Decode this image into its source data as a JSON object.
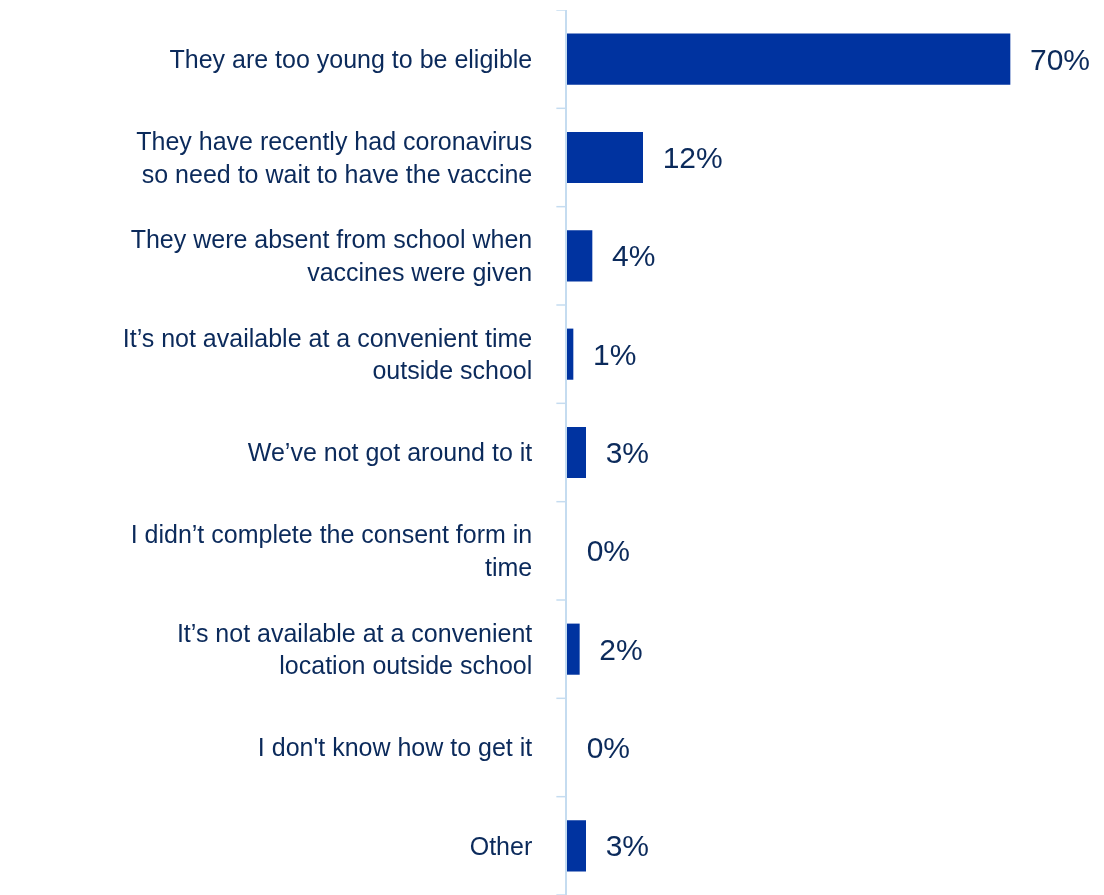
{
  "chart_data": {
    "type": "bar",
    "orientation": "horizontal",
    "categories": [
      "They are too young to be eligible",
      "They have recently had coronavirus\nso need to wait to have the vaccine",
      "They were absent from school when\nvaccines were given",
      "It’s not available at a convenient time\noutside school",
      "We’ve not got around to it",
      "I didn’t complete the consent form in\ntime",
      "It’s not available at a convenient\nlocation outside school",
      "I don't know how to get it",
      "Other"
    ],
    "values": [
      70,
      12,
      4,
      1,
      3,
      0,
      2,
      0,
      3
    ],
    "value_labels": [
      "70%",
      "12%",
      "4%",
      "1%",
      "3%",
      "0%",
      "2%",
      "0%",
      "3%"
    ],
    "color": "#0033a0"
  }
}
